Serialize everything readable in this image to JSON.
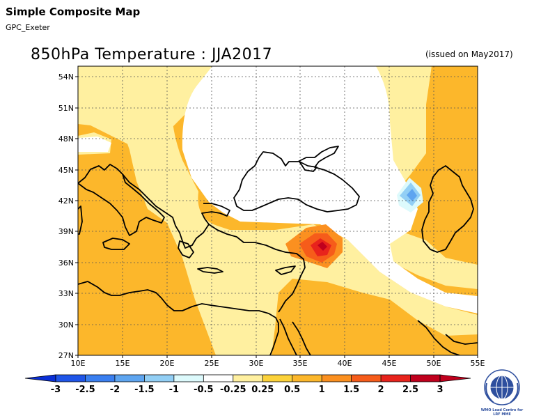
{
  "header": {
    "title": "Simple Composite Map",
    "subtitle": "GPC_Exeter"
  },
  "map": {
    "title": "850hPa Temperature : JJA2017",
    "issued": "(issued on May2017)",
    "lon_labels": [
      "10E",
      "15E",
      "20E",
      "25E",
      "30E",
      "35E",
      "40E",
      "45E",
      "50E",
      "55E"
    ],
    "lat_labels": [
      "54N",
      "51N",
      "48N",
      "45N",
      "42N",
      "39N",
      "36N",
      "33N",
      "30N",
      "27N"
    ],
    "lon_range": [
      10,
      55
    ],
    "lat_range": [
      27,
      55
    ],
    "field": "850hPa temperature anomaly composite",
    "colors": {
      "land_outline": "#000000",
      "gridline": "#555555"
    }
  },
  "colorbar": {
    "labels": [
      "-3",
      "-2.5",
      "-2",
      "-1.5",
      "-1",
      "-0.5",
      "-0.25",
      "0.25",
      "0.5",
      "1",
      "1.5",
      "2",
      "2.5",
      "3"
    ],
    "colors": [
      "#0a2fd6",
      "#1f55e8",
      "#3a7ff0",
      "#5ea5f0",
      "#92cff5",
      "#ddfafc",
      "#ffffff",
      "#fff0a0",
      "#fcd23a",
      "#fcb72b",
      "#fb9020",
      "#f65c1a",
      "#e8231c",
      "#c0001d"
    ]
  },
  "logo": {
    "line1": "WMO Lead Centre for",
    "line2": "LRF MME"
  }
}
